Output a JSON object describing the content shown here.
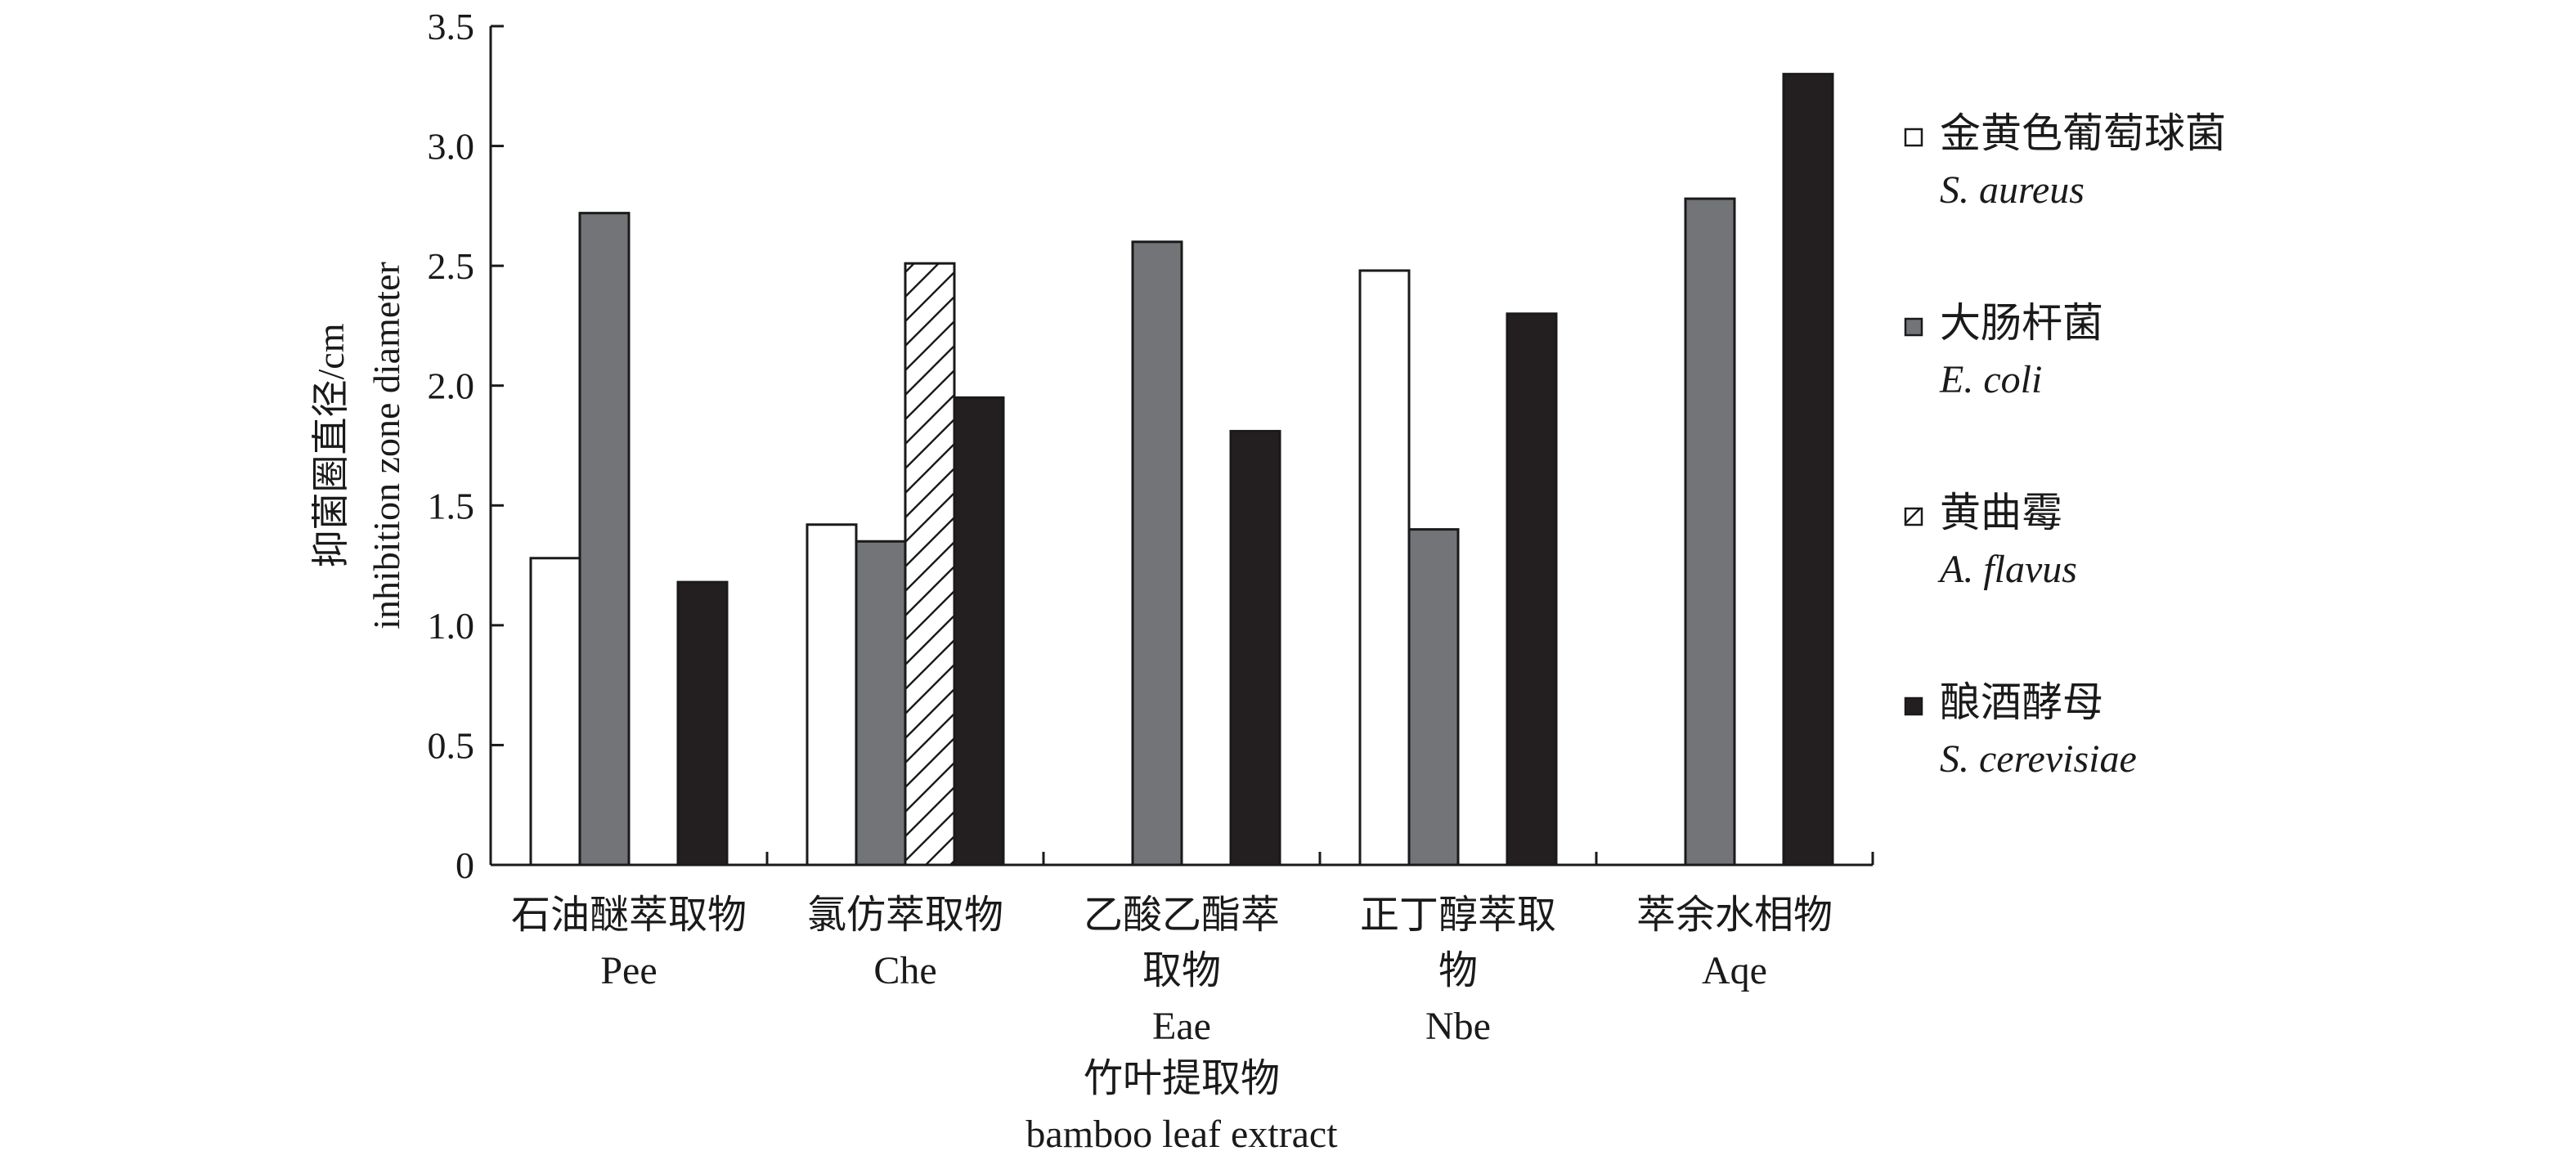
{
  "chart_data": {
    "type": "bar",
    "ylabel_cn": "抑菌圈直径/cm",
    "ylabel_en": "inhibition zone diameter",
    "xlabel_cn": "竹叶提取物",
    "xlabel_en": "bamboo leaf extract",
    "ylim": [
      0,
      3.5
    ],
    "yticks": [
      "0",
      "0.5",
      "1.0",
      "1.5",
      "2.0",
      "2.5",
      "3.0",
      "3.5"
    ],
    "categories": [
      {
        "cn": [
          "石油醚萃取物"
        ],
        "en": "Pee"
      },
      {
        "cn": [
          "氯仿萃取物"
        ],
        "en": "Che"
      },
      {
        "cn": [
          "乙酸乙酯萃",
          "取物"
        ],
        "en": "Eae"
      },
      {
        "cn": [
          "正丁醇萃取",
          "物"
        ],
        "en": "Nbe"
      },
      {
        "cn": [
          "萃余水相物"
        ],
        "en": "Aqe"
      }
    ],
    "series": [
      {
        "name_cn": "金黄色葡萄球菌",
        "name_en": "S. aureus",
        "fill": "#ffffff",
        "values": [
          1.28,
          1.42,
          null,
          2.48,
          null
        ]
      },
      {
        "name_cn": "大肠杆菌",
        "name_en": "E. coli",
        "fill": "#737478",
        "values": [
          2.72,
          1.35,
          2.6,
          1.4,
          2.78
        ]
      },
      {
        "name_cn": "黄曲霉",
        "name_en": "A. flavus",
        "fill": "hatch",
        "values": [
          null,
          2.51,
          null,
          null,
          null
        ]
      },
      {
        "name_cn": "酿酒酵母",
        "name_en": "S. cerevisiae",
        "fill": "#231f20",
        "values": [
          1.18,
          1.95,
          1.81,
          2.3,
          3.3
        ]
      }
    ],
    "legend_position": "right",
    "grid": false
  }
}
